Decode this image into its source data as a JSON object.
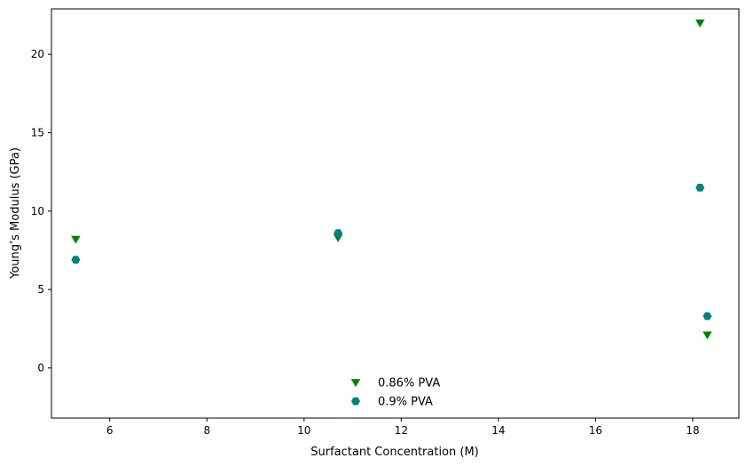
{
  "chart_data": {
    "type": "scatter",
    "xlabel": "Surfactant Concentration (M)",
    "ylabel": "Young’s Modulus (GPa)",
    "xlim": [
      4.8,
      18.95
    ],
    "ylim": [
      -3.2,
      22.9
    ],
    "xticks": [
      6,
      8,
      10,
      12,
      14,
      16,
      18
    ],
    "yticks": [
      0,
      5,
      10,
      15,
      20
    ],
    "legend_position": "lower center",
    "series": [
      {
        "name": "0.86% PVA",
        "marker": "triangle-down",
        "color": "#008000",
        "points": [
          [
            5.3,
            8.2
          ],
          [
            10.7,
            8.3
          ],
          [
            18.15,
            22.0
          ],
          [
            18.3,
            2.1
          ]
        ]
      },
      {
        "name": "0.9% PVA",
        "marker": "hexagon",
        "color": "#008080",
        "points": [
          [
            5.3,
            6.9
          ],
          [
            10.7,
            8.6
          ],
          [
            18.15,
            11.5
          ],
          [
            18.3,
            3.3
          ]
        ]
      }
    ]
  }
}
